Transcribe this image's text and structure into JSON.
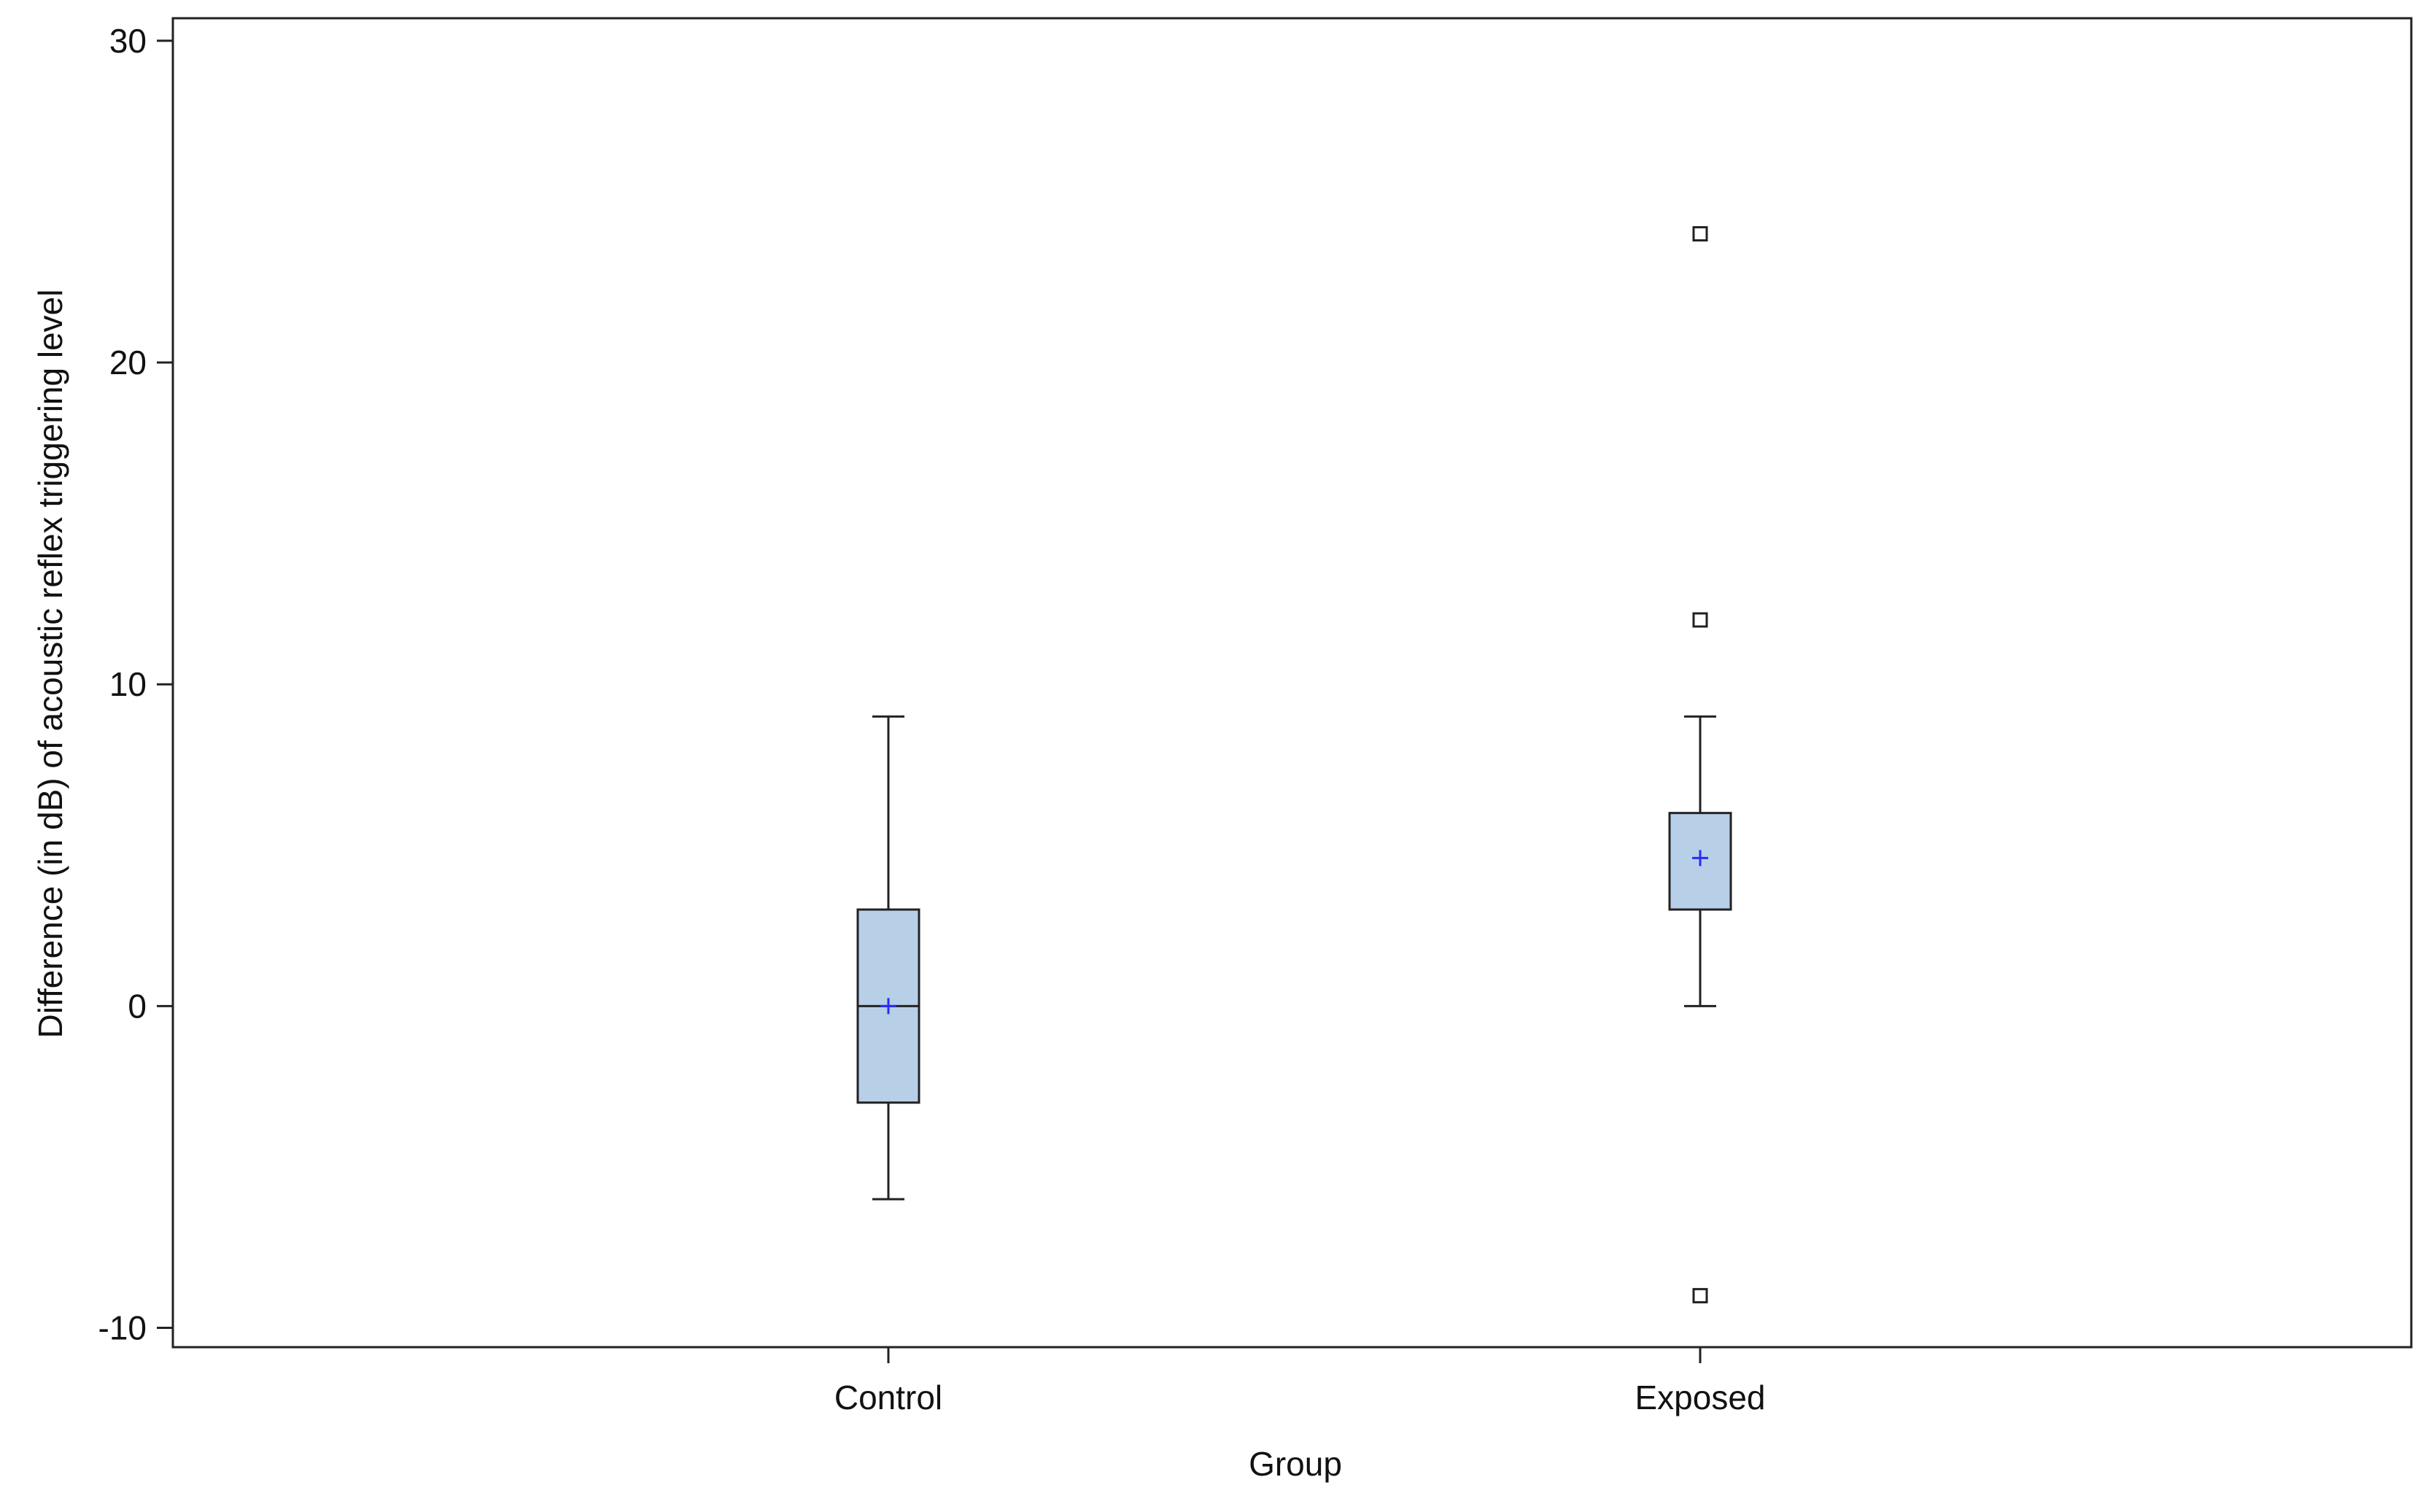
{
  "chart_data": {
    "type": "box",
    "title": "",
    "xlabel": "Group",
    "ylabel": "Difference (in dB) of acoustic reflex triggering level",
    "ylim": [
      -10.6,
      30.7
    ],
    "yticks": [
      -10,
      0,
      10,
      20,
      30
    ],
    "ytick_labels": [
      "-10",
      "0",
      "10",
      "20",
      "30"
    ],
    "grid": false,
    "categories": [
      "Control",
      "Exposed"
    ],
    "boxes": [
      {
        "category": "Control",
        "whisker_low": -6,
        "q1": -3,
        "median": 0,
        "q3": 3,
        "whisker_high": 9,
        "mean": 0,
        "outliers": []
      },
      {
        "category": "Exposed",
        "whisker_low": 0,
        "q1": 3,
        "median": 3,
        "q3": 6,
        "whisker_high": 9,
        "mean": 4.6,
        "outliers": [
          24,
          12,
          -9
        ]
      }
    ],
    "colors": {
      "box_fill": "#b8cfe8",
      "box_stroke": "#222222",
      "mean_marker": "#2a2aff",
      "axis": "#222222"
    }
  }
}
